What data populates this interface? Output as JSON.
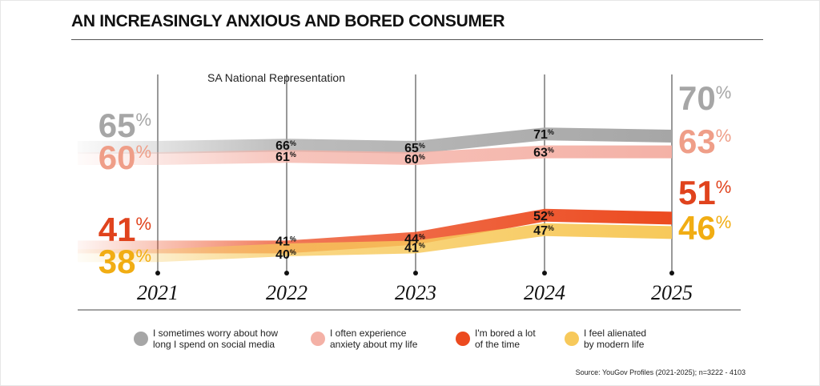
{
  "header": {
    "title": "AN INCREASINGLY ANXIOUS AND BORED CONSUMER"
  },
  "source": "Source: YouGov Profiles (2021-2025); n=3222 - 4103",
  "chart_data": {
    "type": "line",
    "subtitle": "SA National Representation",
    "categories": [
      "2021",
      "2022",
      "2023",
      "2024",
      "2025"
    ],
    "unit": "%",
    "ylim": [
      38,
      70
    ],
    "grid": "vertical lines at each year",
    "legend_position": "bottom",
    "series": [
      {
        "name": "I sometimes worry about how\nlong I spend on social media",
        "values": [
          65,
          66,
          65,
          71,
          70
        ],
        "color": "#a6a6a6",
        "end_label_color": "#a6a6a6"
      },
      {
        "name": "I often experience\nanxiety about my life",
        "values": [
          60,
          61,
          60,
          63,
          63
        ],
        "color": "#f4b1a6",
        "end_label_color": "#ef9e88"
      },
      {
        "name": "I'm bored a lot\nof the time",
        "values": [
          41,
          41,
          44,
          52,
          51
        ],
        "color": "#ec4a1f",
        "end_label_color": "#e0431d"
      },
      {
        "name": "I feel alienated\nby modern life",
        "values": [
          38,
          40,
          41,
          47,
          46
        ],
        "color": "#f7c95b",
        "end_label_color": "#f1ad13"
      }
    ]
  }
}
